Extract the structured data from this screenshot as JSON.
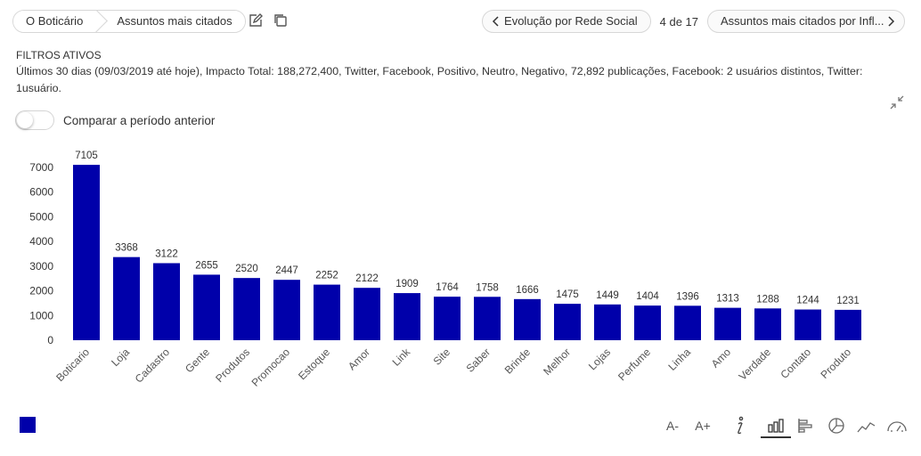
{
  "colors": {
    "bar": "#0000aa",
    "text": "#333333",
    "axis": "#555555",
    "border": "#d7d7d7"
  },
  "breadcrumb": {
    "items": [
      "O Boticário",
      "Assuntos mais citados"
    ]
  },
  "nav": {
    "prev_label": "Evolução por Rede Social",
    "page_count": "4 de 17",
    "next_label": "Assuntos mais citados por Infl..."
  },
  "filters": {
    "title": "FILTROS ATIVOS",
    "text": "Últimos 30 dias (09/03/2019 até hoje), Impacto Total: 188,272,400, Twitter, Facebook, Positivo, Neutro, Negativo, 72,892 publicações, Facebook: 2 usuários distintos, Twitter: 1usuário."
  },
  "compare": {
    "label": "Comparar a período anterior",
    "on": false
  },
  "toolbar": {
    "font_smaller": "A-",
    "font_larger": "A+"
  },
  "icons": [
    "edit-icon",
    "copy-icon",
    "chevron-left-icon",
    "chevron-right-icon",
    "collapse-icon",
    "info-icon",
    "bar-chart-icon",
    "horizontal-bar-icon",
    "pie-chart-icon",
    "line-chart-icon",
    "gauge-icon"
  ],
  "chart_data": {
    "type": "bar",
    "categories": [
      "Boticario",
      "Loja",
      "Cadastro",
      "Gente",
      "Produtos",
      "Promocao",
      "Estoque",
      "Amor",
      "Link",
      "Site",
      "Saber",
      "Brinde",
      "Melhor",
      "Lojas",
      "Perfume",
      "Linha",
      "Amo",
      "Verdade",
      "Contato",
      "Produto"
    ],
    "values": [
      7105,
      3368,
      3122,
      2655,
      2520,
      2447,
      2252,
      2122,
      1909,
      1764,
      1758,
      1666,
      1475,
      1449,
      1404,
      1396,
      1313,
      1288,
      1244,
      1231
    ],
    "ylim": [
      0,
      7000
    ],
    "yticks": [
      0,
      1000,
      2000,
      3000,
      4000,
      5000,
      6000,
      7000
    ],
    "grid": false,
    "legend": "bottom-left"
  }
}
